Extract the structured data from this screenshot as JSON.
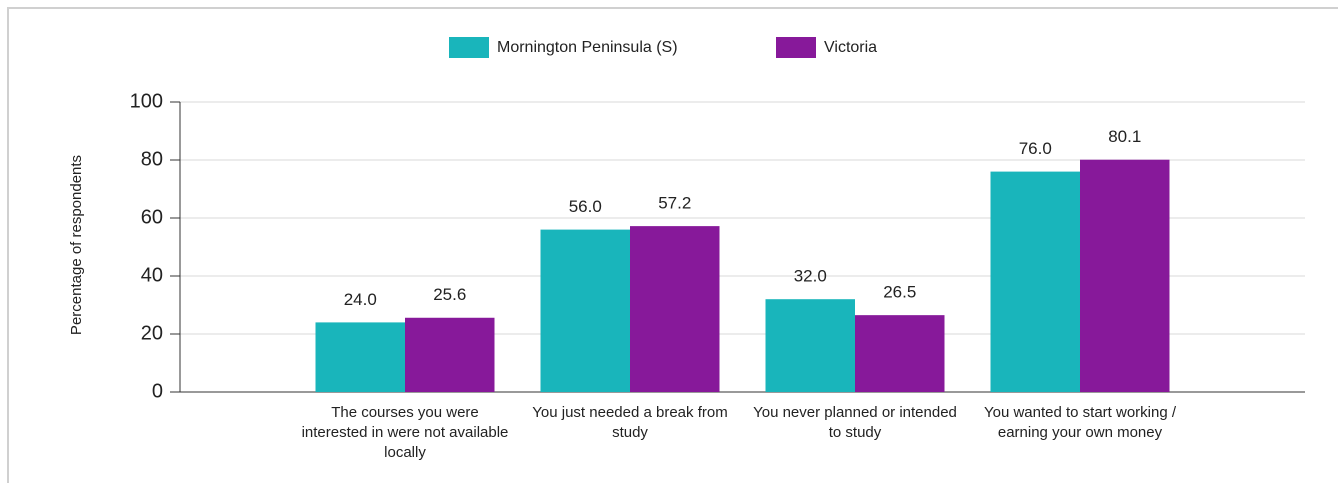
{
  "chart_data": {
    "type": "bar",
    "y_label": "Percentage of respondents",
    "categories": [
      "The courses you were interested in were not available locally",
      "You just needed a break from study",
      "You never planned or intended to study",
      "You wanted to start working / earning your own money"
    ],
    "series": [
      {
        "name": "Mornington Peninsula (S)",
        "color": "#19b5bb",
        "values": [
          24.0,
          56.0,
          32.0,
          76.0
        ],
        "value_labels": [
          "24.0",
          "56.0",
          "32.0",
          "76.0"
        ]
      },
      {
        "name": "Victoria",
        "color": "#87199a",
        "values": [
          25.6,
          57.2,
          26.5,
          80.1
        ],
        "value_labels": [
          "25.6",
          "57.2",
          "26.5",
          "80.1"
        ]
      }
    ],
    "ylim": [
      0,
      100
    ],
    "yticks": [
      0,
      20,
      40,
      60,
      80,
      100
    ],
    "grid": true,
    "legend": "top"
  }
}
